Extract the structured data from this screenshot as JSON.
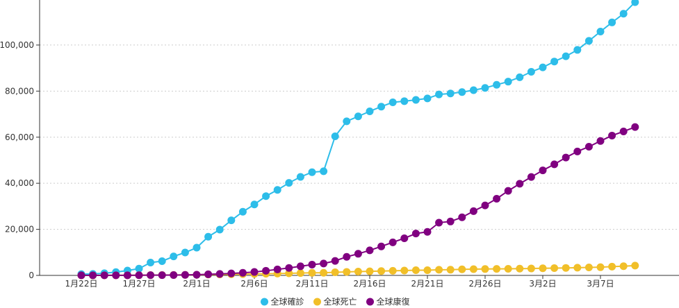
{
  "chart_data": {
    "type": "line",
    "x_ticks": [
      "1月22日",
      "1月27日",
      "2月1日",
      "2月6日",
      "2月11日",
      "2月16日",
      "2月21日",
      "2月26日",
      "3月2日",
      "3月7日"
    ],
    "y_ticks": [
      "0",
      "20,000",
      "40,000",
      "60,000",
      "80,000",
      "100,000"
    ],
    "ylim": [
      0,
      120000
    ],
    "grid": "horizontal-dotted",
    "legend_position": "bottom-center",
    "series": [
      {
        "name": "全球確診",
        "color": "#2dbde9",
        "values": [
          555,
          654,
          941,
          1434,
          2118,
          2927,
          5578,
          6166,
          8234,
          9927,
          12038,
          16787,
          19881,
          23892,
          27635,
          30794,
          34391,
          37120,
          40150,
          42762,
          44802,
          45221,
          60368,
          66885,
          69030,
          71224,
          73258,
          75136,
          75639,
          76197,
          76819,
          78572,
          78958,
          79561,
          80406,
          81388,
          82746,
          84112,
          86011,
          88369,
          90306,
          92840,
          95120,
          97886,
          101801,
          105847,
          109821,
          113590,
          118620
        ]
      },
      {
        "name": "全球死亡",
        "color": "#f1bf29",
        "values": [
          17,
          18,
          26,
          42,
          56,
          82,
          131,
          133,
          171,
          213,
          259,
          362,
          426,
          492,
          564,
          634,
          719,
          806,
          906,
          1013,
          1113,
          1118,
          1371,
          1523,
          1666,
          1770,
          1868,
          2007,
          2122,
          2247,
          2251,
          2458,
          2469,
          2629,
          2708,
          2770,
          2814,
          2872,
          2941,
          2996,
          3085,
          3160,
          3254,
          3348,
          3460,
          3558,
          3802,
          3988,
          4262
        ]
      },
      {
        "name": "全球康復",
        "color": "#800080",
        "values": [
          28,
          30,
          36,
          39,
          52,
          61,
          107,
          126,
          143,
          222,
          284,
          472,
          623,
          852,
          1124,
          1487,
          2011,
          2616,
          3244,
          3946,
          4683,
          5150,
          6295,
          8058,
          9395,
          10865,
          12583,
          14352,
          16121,
          18177,
          18890,
          22886,
          23394,
          25227,
          27905,
          30384,
          33277,
          36711,
          39782,
          42716,
          45602,
          48228,
          51170,
          53796,
          55865,
          58358,
          60694,
          62494,
          64404
        ]
      }
    ]
  }
}
